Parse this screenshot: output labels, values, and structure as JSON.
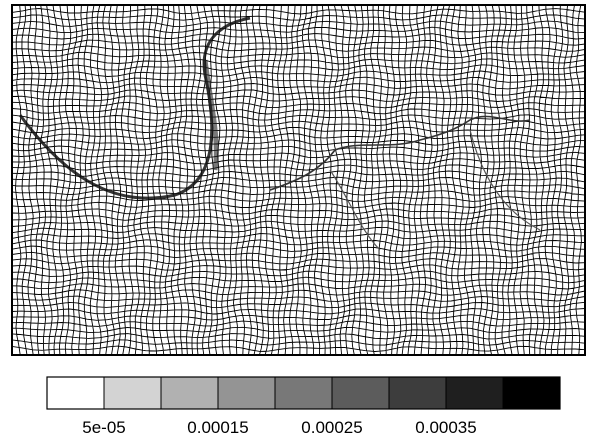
{
  "chart_data": {
    "type": "mesh",
    "colorbar": {
      "clim": [
        0,
        0.00045
      ],
      "colors": [
        "#ffffff",
        "#d3d3d3",
        "#b1b1b1",
        "#949494",
        "#787878",
        "#5c5c5c",
        "#3d3d3d",
        "#1f1f1f",
        "#000000"
      ],
      "ticks": [
        {
          "value": 5e-05,
          "label": "5e-05"
        },
        0.00015,
        0.00025,
        0.00035
      ]
    }
  }
}
